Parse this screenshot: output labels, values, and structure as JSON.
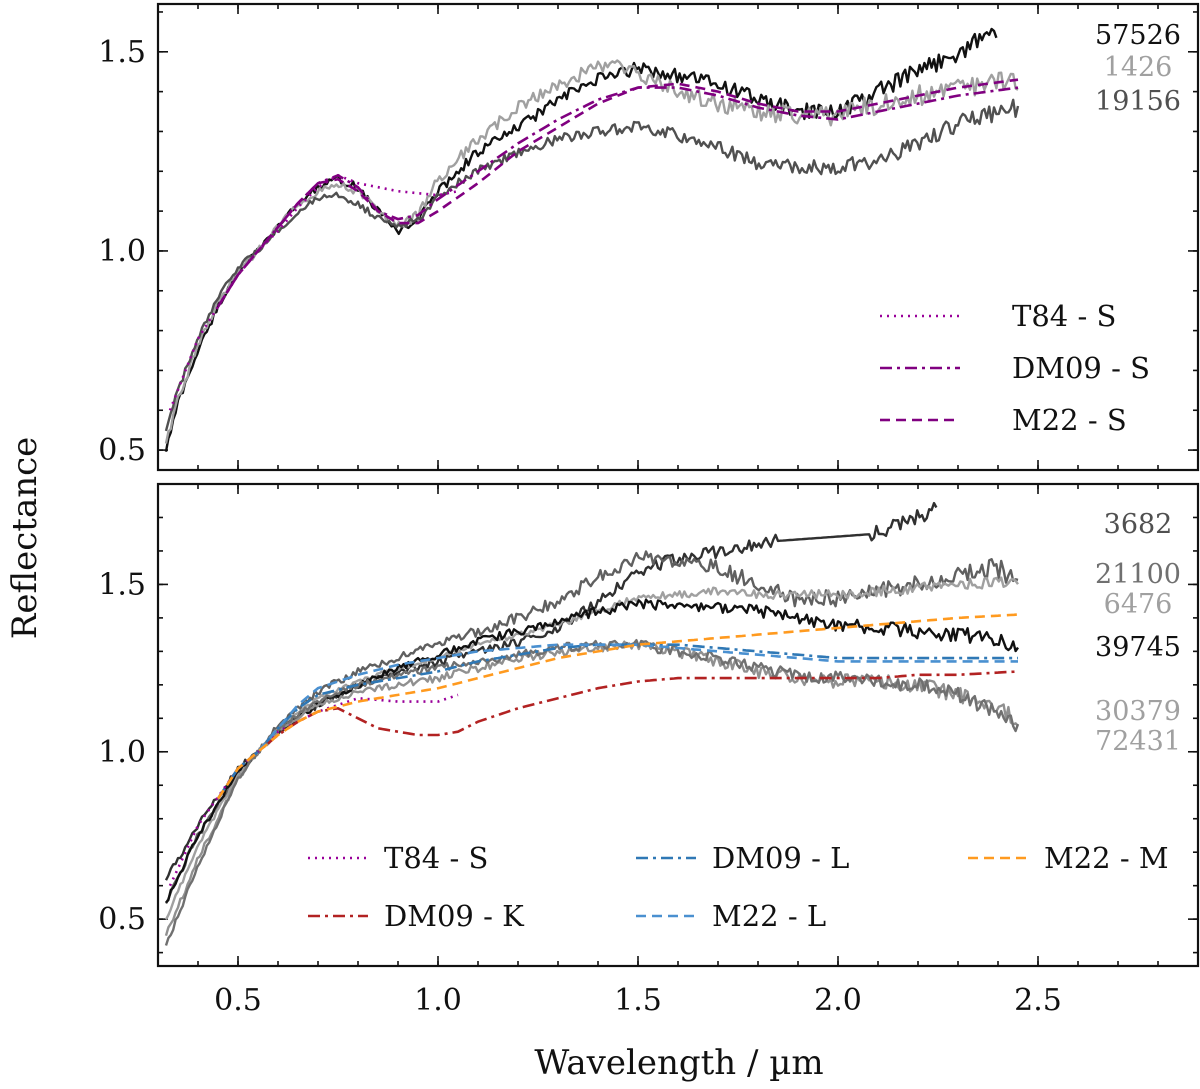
{
  "figure": {
    "xlabel": "Wavelength / µm",
    "ylabel": "Reflectance"
  },
  "chart_data": [
    {
      "type": "line",
      "panel": "top",
      "xlim": [
        0.3,
        2.9
      ],
      "ylim": [
        0.45,
        1.62
      ],
      "xticks": [
        0.5,
        1.0,
        1.5,
        2.0,
        2.5
      ],
      "yticks": [
        0.5,
        1.0,
        1.5
      ],
      "ytick_labels": [
        "0.5",
        "1.0",
        "1.5"
      ],
      "series": [
        {
          "name": "57526",
          "kind": "observed",
          "color": "#111111",
          "label_color": "#111111",
          "noise": 0.012,
          "x": [
            0.32,
            0.35,
            0.4,
            0.45,
            0.5,
            0.55,
            0.6,
            0.65,
            0.7,
            0.75,
            0.8,
            0.85,
            0.9,
            0.95,
            1.0,
            1.1,
            1.2,
            1.3,
            1.4,
            1.5,
            1.6,
            1.7,
            1.8,
            1.9,
            2.0,
            2.1,
            2.2,
            2.3,
            2.4
          ],
          "y": [
            0.5,
            0.62,
            0.75,
            0.86,
            0.95,
            1.0,
            1.06,
            1.12,
            1.16,
            1.18,
            1.16,
            1.1,
            1.05,
            1.08,
            1.15,
            1.25,
            1.31,
            1.38,
            1.43,
            1.46,
            1.44,
            1.42,
            1.38,
            1.35,
            1.35,
            1.4,
            1.45,
            1.5,
            1.56
          ]
        },
        {
          "name": "1426",
          "kind": "observed",
          "color": "#a0a0a0",
          "label_color": "#a0a0a0",
          "noise": 0.014,
          "x": [
            0.32,
            0.35,
            0.4,
            0.45,
            0.5,
            0.55,
            0.6,
            0.65,
            0.7,
            0.75,
            0.8,
            0.85,
            0.9,
            0.95,
            1.0,
            1.1,
            1.2,
            1.3,
            1.4,
            1.45,
            1.5,
            1.6,
            1.7,
            1.8,
            1.9,
            2.0,
            2.1,
            2.2,
            2.3,
            2.45
          ],
          "y": [
            0.52,
            0.63,
            0.76,
            0.87,
            0.95,
            1.0,
            1.06,
            1.12,
            1.15,
            1.17,
            1.15,
            1.1,
            1.06,
            1.09,
            1.18,
            1.28,
            1.36,
            1.42,
            1.46,
            1.47,
            1.44,
            1.4,
            1.37,
            1.35,
            1.34,
            1.34,
            1.37,
            1.39,
            1.41,
            1.43
          ]
        },
        {
          "name": "19156",
          "kind": "observed",
          "color": "#505050",
          "label_color": "#505050",
          "noise": 0.011,
          "x": [
            0.32,
            0.35,
            0.4,
            0.45,
            0.5,
            0.55,
            0.6,
            0.65,
            0.7,
            0.75,
            0.8,
            0.85,
            0.9,
            0.95,
            1.0,
            1.1,
            1.2,
            1.3,
            1.4,
            1.5,
            1.6,
            1.7,
            1.8,
            1.9,
            2.0,
            2.1,
            2.2,
            2.3,
            2.45
          ],
          "y": [
            0.55,
            0.65,
            0.78,
            0.88,
            0.96,
            1.0,
            1.05,
            1.1,
            1.13,
            1.14,
            1.12,
            1.08,
            1.06,
            1.08,
            1.14,
            1.2,
            1.25,
            1.28,
            1.3,
            1.31,
            1.29,
            1.26,
            1.22,
            1.21,
            1.21,
            1.23,
            1.27,
            1.32,
            1.36
          ]
        },
        {
          "name": "T84 - S",
          "kind": "model",
          "style": "dotted",
          "color": "#990099",
          "x": [
            0.33,
            0.4,
            0.5,
            0.55,
            0.6,
            0.65,
            0.7,
            0.75,
            0.8,
            0.9,
            1.0,
            1.05
          ],
          "y": [
            0.6,
            0.78,
            0.94,
            1.0,
            1.05,
            1.11,
            1.16,
            1.19,
            1.17,
            1.15,
            1.14,
            1.15
          ]
        },
        {
          "name": "DM09 - S",
          "kind": "model",
          "style": "dashdot",
          "color": "#800080",
          "x": [
            0.45,
            0.5,
            0.55,
            0.6,
            0.65,
            0.7,
            0.75,
            0.8,
            0.85,
            0.9,
            0.95,
            1.0,
            1.1,
            1.2,
            1.3,
            1.4,
            1.5,
            1.6,
            1.7,
            1.8,
            1.9,
            2.0,
            2.1,
            2.2,
            2.3,
            2.45
          ],
          "y": [
            0.86,
            0.94,
            1.0,
            1.06,
            1.12,
            1.17,
            1.19,
            1.16,
            1.1,
            1.08,
            1.09,
            1.13,
            1.2,
            1.27,
            1.33,
            1.38,
            1.41,
            1.41,
            1.39,
            1.36,
            1.34,
            1.33,
            1.35,
            1.37,
            1.39,
            1.41
          ]
        },
        {
          "name": "M22 - S",
          "kind": "model",
          "style": "dashed",
          "color": "#800080",
          "x": [
            0.45,
            0.5,
            0.55,
            0.6,
            0.65,
            0.7,
            0.75,
            0.8,
            0.85,
            0.9,
            0.95,
            1.0,
            1.1,
            1.2,
            1.3,
            1.4,
            1.5,
            1.6,
            1.7,
            1.8,
            1.9,
            2.0,
            2.1,
            2.2,
            2.3,
            2.45
          ],
          "y": [
            0.86,
            0.94,
            1.0,
            1.06,
            1.12,
            1.17,
            1.18,
            1.15,
            1.1,
            1.07,
            1.07,
            1.1,
            1.17,
            1.25,
            1.31,
            1.37,
            1.41,
            1.42,
            1.4,
            1.37,
            1.35,
            1.35,
            1.37,
            1.39,
            1.41,
            1.43
          ]
        }
      ],
      "legend": {
        "placement": "right",
        "entries": [
          "T84 - S",
          "DM09 - S",
          "M22 - S"
        ]
      }
    },
    {
      "type": "line",
      "panel": "bottom",
      "xlim": [
        0.3,
        2.9
      ],
      "ylim": [
        0.36,
        1.8
      ],
      "xticks": [
        0.5,
        1.0,
        1.5,
        2.0,
        2.5
      ],
      "xtick_labels": [
        "0.5",
        "1.0",
        "1.5",
        "2.0",
        "2.5"
      ],
      "yticks": [
        0.5,
        1.0,
        1.5
      ],
      "ytick_labels": [
        "0.5",
        "1.0",
        "1.5"
      ],
      "series": [
        {
          "name": "3682",
          "kind": "observed",
          "color": "#303030",
          "label_color": "#505050",
          "noise": 0.013,
          "gap": [
            1.85,
            2.08
          ],
          "x": [
            0.32,
            0.4,
            0.5,
            0.55,
            0.6,
            0.7,
            0.8,
            0.9,
            1.0,
            1.1,
            1.2,
            1.3,
            1.4,
            1.5,
            1.6,
            1.7,
            1.8,
            1.85,
            2.08,
            2.1,
            2.15,
            2.2,
            2.25
          ],
          "y": [
            0.62,
            0.78,
            0.95,
            1.0,
            1.06,
            1.14,
            1.2,
            1.24,
            1.27,
            1.3,
            1.33,
            1.37,
            1.45,
            1.54,
            1.58,
            1.6,
            1.62,
            1.63,
            1.65,
            1.66,
            1.68,
            1.7,
            1.74
          ]
        },
        {
          "name": "21100",
          "kind": "observed",
          "color": "#606060",
          "label_color": "#707070",
          "noise": 0.015,
          "x": [
            0.32,
            0.4,
            0.5,
            0.55,
            0.6,
            0.7,
            0.8,
            0.9,
            1.0,
            1.1,
            1.2,
            1.3,
            1.4,
            1.5,
            1.6,
            1.7,
            1.8,
            1.9,
            2.0,
            2.1,
            2.2,
            2.3,
            2.4,
            2.45
          ],
          "y": [
            0.55,
            0.75,
            0.93,
            1.0,
            1.08,
            1.18,
            1.24,
            1.28,
            1.32,
            1.36,
            1.4,
            1.45,
            1.52,
            1.58,
            1.57,
            1.55,
            1.5,
            1.45,
            1.46,
            1.48,
            1.5,
            1.53,
            1.55,
            1.5
          ]
        },
        {
          "name": "6476",
          "kind": "observed",
          "color": "#a0a0a0",
          "label_color": "#a0a0a0",
          "noise": 0.008,
          "x": [
            0.32,
            0.4,
            0.5,
            0.55,
            0.6,
            0.7,
            0.8,
            0.9,
            1.0,
            1.1,
            1.2,
            1.3,
            1.4,
            1.5,
            1.6,
            1.7,
            1.8,
            1.9,
            2.0,
            2.1,
            2.2,
            2.3,
            2.45
          ],
          "y": [
            0.5,
            0.72,
            0.93,
            1.0,
            1.07,
            1.16,
            1.21,
            1.25,
            1.28,
            1.32,
            1.35,
            1.38,
            1.42,
            1.46,
            1.47,
            1.48,
            1.47,
            1.47,
            1.47,
            1.48,
            1.49,
            1.5,
            1.51
          ]
        },
        {
          "name": "39745",
          "kind": "observed",
          "color": "#111111",
          "label_color": "#111111",
          "noise": 0.011,
          "x": [
            0.32,
            0.4,
            0.5,
            0.55,
            0.6,
            0.7,
            0.8,
            0.9,
            1.0,
            1.1,
            1.2,
            1.3,
            1.4,
            1.5,
            1.6,
            1.7,
            1.8,
            1.9,
            2.0,
            2.1,
            2.2,
            2.3,
            2.4,
            2.45
          ],
          "y": [
            0.55,
            0.75,
            0.94,
            1.0,
            1.06,
            1.14,
            1.2,
            1.25,
            1.29,
            1.33,
            1.36,
            1.39,
            1.42,
            1.44,
            1.44,
            1.43,
            1.42,
            1.4,
            1.38,
            1.37,
            1.36,
            1.35,
            1.34,
            1.3
          ]
        },
        {
          "name": "30379",
          "kind": "observed",
          "color": "#909090",
          "label_color": "#a0a0a0",
          "noise": 0.012,
          "x": [
            0.32,
            0.4,
            0.5,
            0.55,
            0.6,
            0.7,
            0.8,
            0.9,
            1.0,
            1.1,
            1.2,
            1.3,
            1.4,
            1.5,
            1.6,
            1.7,
            1.8,
            1.9,
            2.0,
            2.1,
            2.2,
            2.3,
            2.4,
            2.45
          ],
          "y": [
            0.45,
            0.68,
            0.92,
            1.0,
            1.06,
            1.14,
            1.18,
            1.2,
            1.22,
            1.25,
            1.28,
            1.3,
            1.31,
            1.32,
            1.3,
            1.27,
            1.24,
            1.22,
            1.21,
            1.21,
            1.2,
            1.17,
            1.13,
            1.09
          ]
        },
        {
          "name": "72431",
          "kind": "observed",
          "color": "#707070",
          "label_color": "#a0a0a0",
          "noise": 0.011,
          "x": [
            0.32,
            0.4,
            0.5,
            0.55,
            0.6,
            0.7,
            0.8,
            0.9,
            1.0,
            1.1,
            1.2,
            1.3,
            1.4,
            1.5,
            1.6,
            1.7,
            1.8,
            1.9,
            2.0,
            2.1,
            2.2,
            2.3,
            2.4,
            2.45
          ],
          "y": [
            0.42,
            0.66,
            0.92,
            1.0,
            1.07,
            1.15,
            1.2,
            1.23,
            1.25,
            1.27,
            1.29,
            1.31,
            1.32,
            1.32,
            1.3,
            1.28,
            1.25,
            1.23,
            1.22,
            1.21,
            1.2,
            1.17,
            1.12,
            1.07
          ]
        },
        {
          "name": "T84 - S",
          "kind": "model",
          "style": "dotted",
          "color": "#990099",
          "x": [
            0.33,
            0.4,
            0.5,
            0.55,
            0.6,
            0.7,
            0.8,
            0.9,
            1.0,
            1.05
          ],
          "y": [
            0.6,
            0.78,
            0.95,
            1.0,
            1.06,
            1.12,
            1.16,
            1.15,
            1.15,
            1.17
          ]
        },
        {
          "name": "DM09 - K",
          "kind": "model",
          "style": "dashdot",
          "color": "#b22222",
          "x": [
            0.45,
            0.5,
            0.55,
            0.6,
            0.65,
            0.7,
            0.75,
            0.8,
            0.85,
            0.9,
            0.95,
            1.0,
            1.05,
            1.1,
            1.2,
            1.3,
            1.4,
            1.5,
            1.6,
            1.7,
            1.8,
            1.9,
            2.0,
            2.1,
            2.2,
            2.3,
            2.45
          ],
          "y": [
            0.86,
            0.95,
            1.0,
            1.05,
            1.09,
            1.12,
            1.13,
            1.1,
            1.07,
            1.06,
            1.05,
            1.05,
            1.06,
            1.09,
            1.13,
            1.16,
            1.19,
            1.21,
            1.22,
            1.22,
            1.22,
            1.22,
            1.22,
            1.22,
            1.23,
            1.23,
            1.24
          ]
        },
        {
          "name": "DM09 - L",
          "kind": "model",
          "style": "dashdot",
          "color": "#2f78b5",
          "x": [
            0.45,
            0.5,
            0.55,
            0.6,
            0.65,
            0.7,
            0.8,
            0.9,
            1.0,
            1.1,
            1.2,
            1.3,
            1.4,
            1.5,
            1.6,
            1.7,
            1.8,
            1.9,
            2.0,
            2.1,
            2.2,
            2.3,
            2.45
          ],
          "y": [
            0.86,
            0.95,
            1.0,
            1.07,
            1.13,
            1.17,
            1.2,
            1.22,
            1.24,
            1.27,
            1.29,
            1.31,
            1.32,
            1.32,
            1.32,
            1.31,
            1.3,
            1.29,
            1.28,
            1.28,
            1.28,
            1.28,
            1.28
          ]
        },
        {
          "name": "M22 - L",
          "kind": "model",
          "style": "dashed",
          "color": "#4a90d0",
          "x": [
            0.45,
            0.5,
            0.55,
            0.6,
            0.65,
            0.7,
            0.8,
            0.9,
            1.0,
            1.1,
            1.2,
            1.3,
            1.4,
            1.5,
            1.6,
            1.7,
            1.8,
            1.9,
            2.0,
            2.1,
            2.2,
            2.3,
            2.45
          ],
          "y": [
            0.86,
            0.95,
            1.0,
            1.07,
            1.14,
            1.19,
            1.23,
            1.26,
            1.28,
            1.3,
            1.31,
            1.32,
            1.32,
            1.32,
            1.31,
            1.3,
            1.29,
            1.28,
            1.27,
            1.27,
            1.27,
            1.27,
            1.27
          ]
        },
        {
          "name": "M22 - M",
          "kind": "model",
          "style": "dashed",
          "color": "#ff9a1f",
          "x": [
            0.45,
            0.5,
            0.55,
            0.6,
            0.65,
            0.7,
            0.8,
            0.9,
            1.0,
            1.1,
            1.2,
            1.3,
            1.4,
            1.5,
            1.6,
            1.7,
            1.8,
            1.9,
            2.0,
            2.1,
            2.2,
            2.3,
            2.45
          ],
          "y": [
            0.86,
            0.95,
            1.0,
            1.05,
            1.09,
            1.12,
            1.15,
            1.17,
            1.19,
            1.22,
            1.25,
            1.28,
            1.3,
            1.32,
            1.33,
            1.34,
            1.35,
            1.36,
            1.37,
            1.38,
            1.39,
            1.4,
            1.41
          ]
        }
      ],
      "legend": {
        "placement": "bottom",
        "columns": 3,
        "entries": [
          "T84 - S",
          "DM09 - K",
          "DM09 - L",
          "M22 - L",
          "M22 - M"
        ]
      }
    }
  ]
}
